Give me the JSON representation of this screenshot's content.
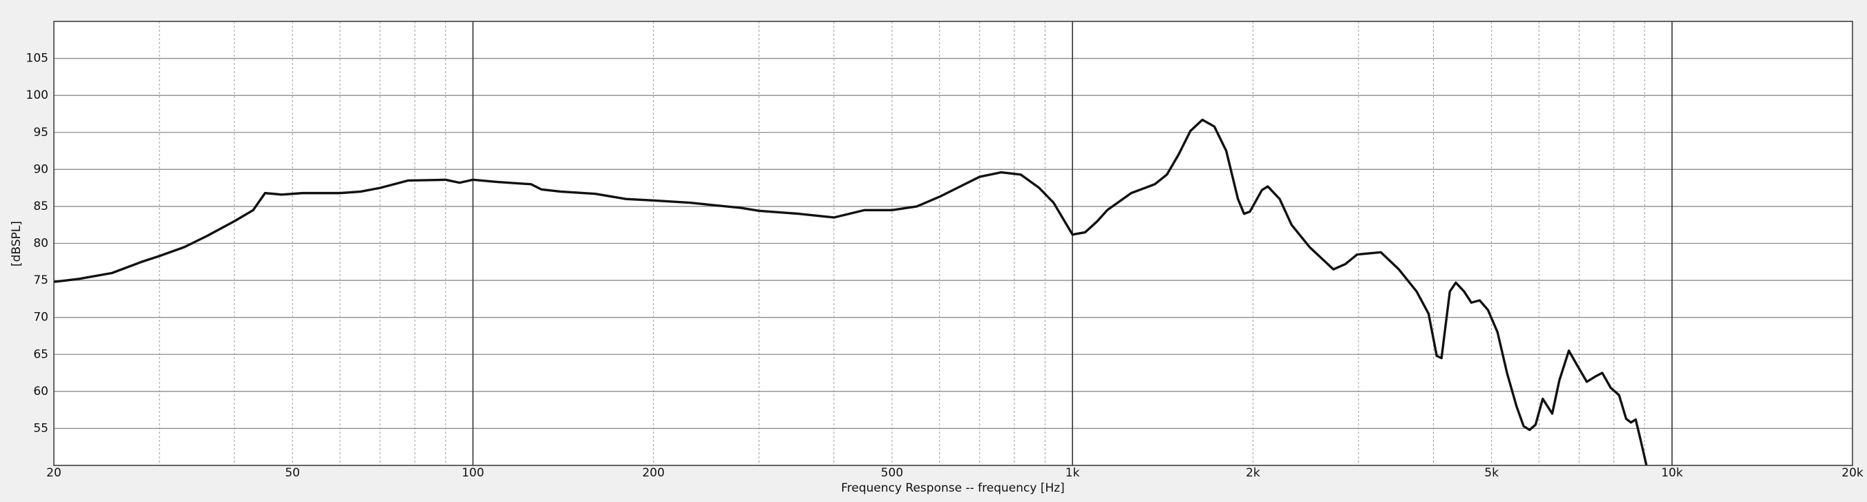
{
  "chart_data": {
    "type": "line",
    "x_label": "Frequency Response -- frequency [Hz]",
    "y_label": "[dBSPL]",
    "xscale": "log",
    "xlim": [
      20,
      20000
    ],
    "xticks": [
      20,
      50,
      100,
      200,
      500,
      {
        "value": 1000,
        "label": "1k"
      },
      {
        "value": 2000,
        "label": "2k"
      },
      {
        "value": 5000,
        "label": "5k"
      },
      {
        "value": 10000,
        "label": "10k"
      },
      {
        "value": 20000,
        "label": "20k"
      }
    ],
    "minor_xticks": [
      30,
      40,
      60,
      70,
      80,
      90,
      300,
      400,
      600,
      700,
      800,
      900,
      3000,
      4000,
      6000,
      7000,
      8000,
      9000
    ],
    "ylim": [
      50,
      110
    ],
    "yticks": [
      55,
      60,
      65,
      70,
      75,
      80,
      85,
      90,
      95,
      100,
      105
    ],
    "grid": true,
    "color": "#111111",
    "x": [
      20,
      22,
      25,
      28,
      30,
      33,
      36,
      40,
      43,
      45,
      48,
      52,
      60,
      65,
      70,
      78,
      90,
      95,
      100,
      110,
      125,
      130,
      140,
      160,
      180,
      200,
      230,
      250,
      280,
      300,
      350,
      400,
      450,
      500,
      550,
      600,
      700,
      760,
      820,
      880,
      930,
      970,
      1000,
      1050,
      1100,
      1143,
      1253,
      1372,
      1437,
      1503,
      1573,
      1647,
      1724,
      1805,
      1888,
      1933,
      1977,
      2070,
      2117,
      2216,
      2320,
      2486,
      2723,
      2851,
      2984,
      3269,
      3502,
      3750,
      3926,
      4051,
      4126,
      4260,
      4359,
      4501,
      4626,
      4777,
      4932,
      5116,
      5306,
      5503,
      5656,
      5787,
      5921,
      6086,
      6312,
      6488,
      6729,
      6950,
      7209,
      7444,
      7651,
      7900,
      8159,
      8385,
      8540,
      8698,
      8860,
      9065
    ],
    "values": [
      74.8,
      75.2,
      76,
      77.5,
      78.3,
      79.5,
      81,
      83,
      84.5,
      86.8,
      86.6,
      86.8,
      86.8,
      87,
      87.5,
      88.5,
      88.6,
      88.2,
      88.6,
      88.3,
      88,
      87.3,
      87,
      86.7,
      86,
      85.8,
      85.5,
      85.2,
      84.8,
      84.4,
      84,
      83.5,
      84.5,
      84.5,
      85,
      86.3,
      89,
      89.6,
      89.3,
      87.5,
      85.5,
      83,
      81.2,
      81.5,
      83,
      84.5,
      86.8,
      88,
      89.3,
      92,
      95.2,
      96.7,
      95.8,
      92.5,
      86,
      84,
      84.3,
      87.2,
      87.7,
      86,
      82.5,
      79.5,
      76.5,
      77.2,
      78.5,
      78.8,
      76.5,
      73.5,
      70.5,
      64.8,
      64.5,
      73.5,
      74.7,
      73.5,
      72,
      72.3,
      71,
      68,
      62.5,
      58,
      55.3,
      54.8,
      55.5,
      59,
      57,
      61.5,
      65.5,
      63.5,
      61.3,
      62,
      62.5,
      60.5,
      59.5,
      56.3,
      55.8,
      56.2,
      53.5,
      50
    ]
  }
}
